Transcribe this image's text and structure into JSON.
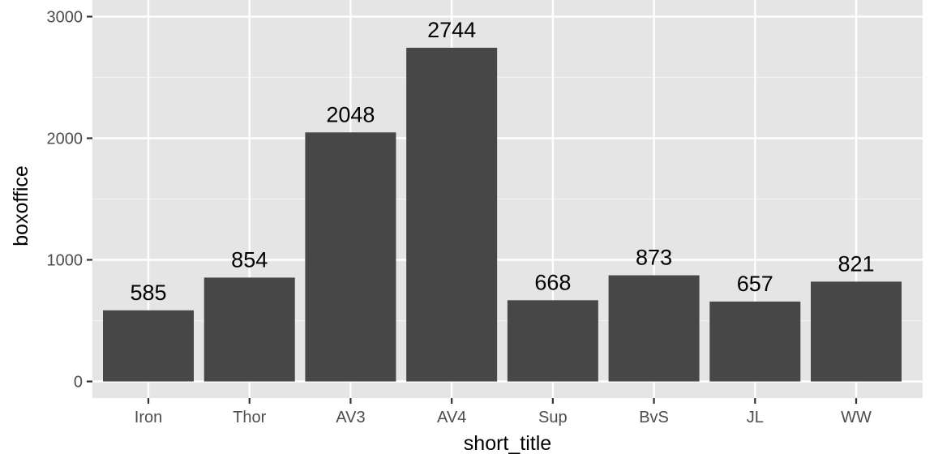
{
  "chart_data": {
    "type": "bar",
    "categories": [
      "Iron",
      "Thor",
      "AV3",
      "AV4",
      "Sup",
      "BvS",
      "JL",
      "WW"
    ],
    "values": [
      585,
      854,
      2048,
      2744,
      668,
      873,
      657,
      821
    ],
    "data_labels": [
      "585",
      "854",
      "2048",
      "2744",
      "668",
      "873",
      "657",
      "821"
    ],
    "xlabel": "short_title",
    "ylabel": "boxoffice",
    "yticks": [
      0,
      1000,
      2000,
      3000
    ],
    "ytick_labels": [
      "0",
      "1000",
      "2000",
      "3000"
    ],
    "ylim": [
      -137,
      3000
    ],
    "grid": true,
    "colors": {
      "bar": "#474747",
      "panel": "#e5e5e5",
      "grid_major": "#ffffff",
      "grid_minor": "#f2f2f2",
      "tick_text": "#4d4d4d"
    }
  }
}
